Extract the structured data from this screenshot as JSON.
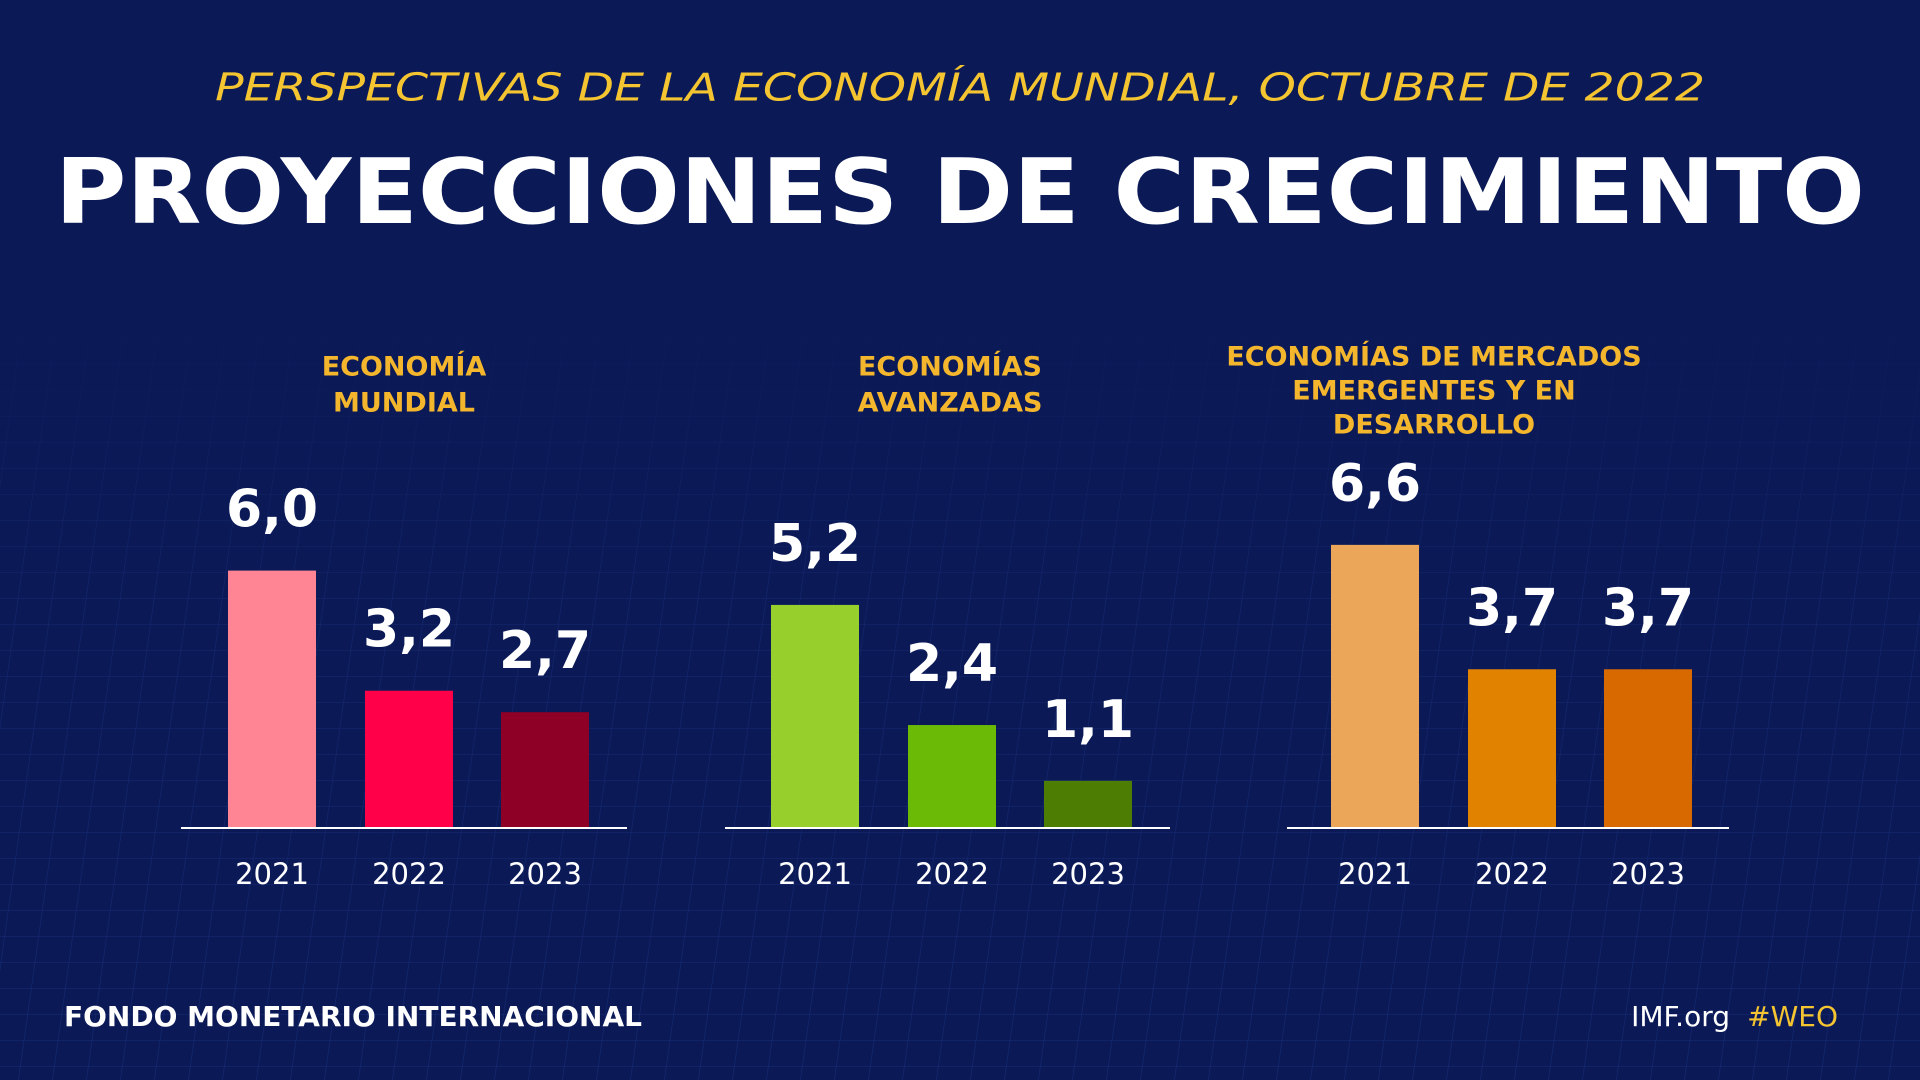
{
  "header": {
    "subtitle": "PERSPECTIVAS DE LA ECONOMÍA MUNDIAL, OCTUBRE DE 2022",
    "title": "PROYECCIONES DE CRECIMIENTO"
  },
  "chart_data": [
    {
      "type": "bar",
      "title_lines": [
        "ECONOMÍA",
        "MUNDIAL"
      ],
      "categories": [
        "2021",
        "2022",
        "2023"
      ],
      "values": [
        6.0,
        3.2,
        2.7
      ],
      "value_labels": [
        "6,0",
        "3,2",
        "2,7"
      ],
      "colors": [
        "#ff8594",
        "#ff0049",
        "#8f0026"
      ]
    },
    {
      "type": "bar",
      "title_lines": [
        "ECONOMÍAS",
        "AVANZADAS"
      ],
      "categories": [
        "2021",
        "2022",
        "2023"
      ],
      "values": [
        5.2,
        2.4,
        1.1
      ],
      "value_labels": [
        "5,2",
        "2,4",
        "1,1"
      ],
      "colors": [
        "#97cf2d",
        "#6bbb06",
        "#4d7d03"
      ]
    },
    {
      "type": "bar",
      "title_lines": [
        "ECONOMÍAS DE MERCADOS",
        "EMERGENTES Y EN",
        "DESARROLLO"
      ],
      "categories": [
        "2021",
        "2022",
        "2023"
      ],
      "values": [
        6.6,
        3.7,
        3.7
      ],
      "value_labels": [
        "6,6",
        "3,7",
        "3,7"
      ],
      "colors": [
        "#eba65a",
        "#e28201",
        "#d86800"
      ]
    }
  ],
  "footer": {
    "organization": "FONDO MONETARIO INTERNACIONAL",
    "site": "IMF.org",
    "hashtag": "#WEO"
  }
}
